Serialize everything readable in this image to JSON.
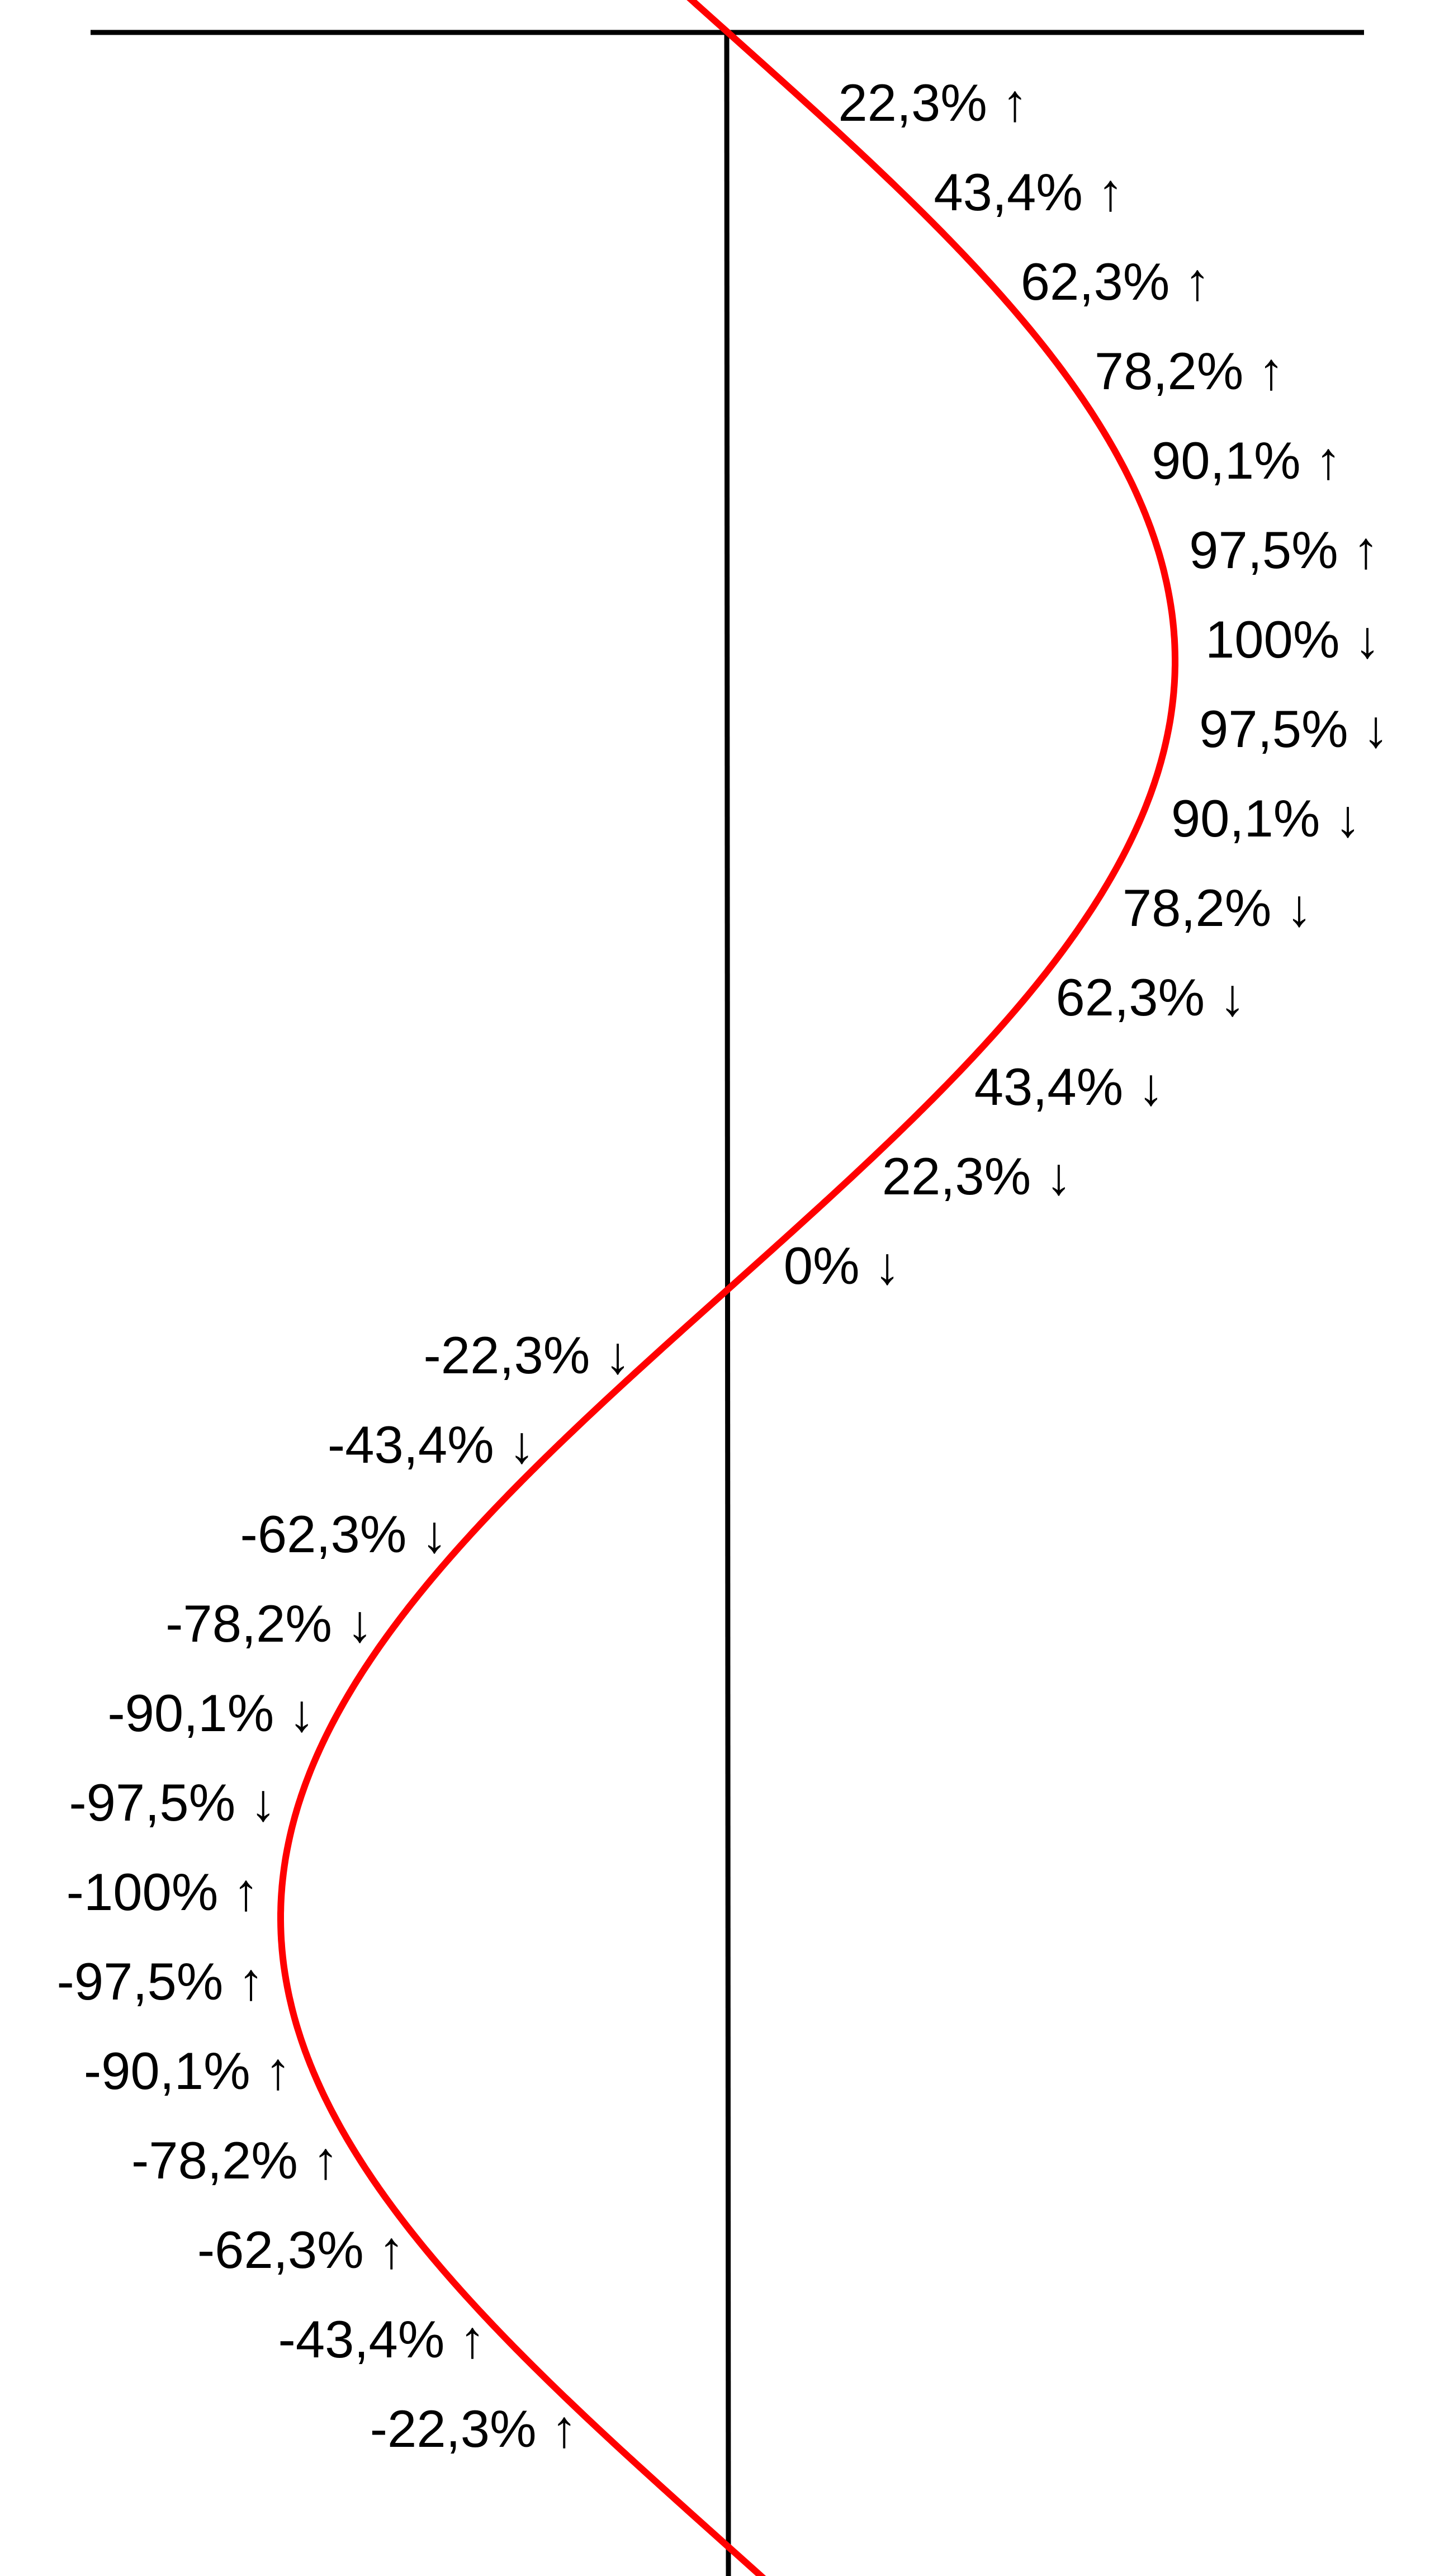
{
  "colors": {
    "background": "#ffffff",
    "axis": "#000000",
    "curve": "#ff0000",
    "text": "#000000"
  },
  "chart_data": {
    "type": "line",
    "orientation": "vertical",
    "curve": "sine",
    "points": [
      {
        "value": 22.3,
        "label": "22,3%",
        "direction": "up"
      },
      {
        "value": 43.4,
        "label": "43,4%",
        "direction": "up"
      },
      {
        "value": 62.3,
        "label": "62,3%",
        "direction": "up"
      },
      {
        "value": 78.2,
        "label": "78,2%",
        "direction": "up"
      },
      {
        "value": 90.1,
        "label": "90,1%",
        "direction": "up"
      },
      {
        "value": 97.5,
        "label": "97,5%",
        "direction": "up"
      },
      {
        "value": 100,
        "label": "100%",
        "direction": "down"
      },
      {
        "value": 97.5,
        "label": "97,5%",
        "direction": "down"
      },
      {
        "value": 90.1,
        "label": "90,1%",
        "direction": "down"
      },
      {
        "value": 78.2,
        "label": "78,2%",
        "direction": "down"
      },
      {
        "value": 62.3,
        "label": "62,3%",
        "direction": "down"
      },
      {
        "value": 43.4,
        "label": "43,4%",
        "direction": "down"
      },
      {
        "value": 22.3,
        "label": "22,3%",
        "direction": "down"
      },
      {
        "value": 0,
        "label": "0%",
        "direction": "down"
      },
      {
        "value": -22.3,
        "label": "-22,3%",
        "direction": "down"
      },
      {
        "value": -43.4,
        "label": "-43,4%",
        "direction": "down"
      },
      {
        "value": -62.3,
        "label": "-62,3%",
        "direction": "down"
      },
      {
        "value": -78.2,
        "label": "-78,2%",
        "direction": "down"
      },
      {
        "value": -90.1,
        "label": "-90,1%",
        "direction": "down"
      },
      {
        "value": -97.5,
        "label": "-97,5%",
        "direction": "down"
      },
      {
        "value": -100,
        "label": "-100%",
        "direction": "up"
      },
      {
        "value": -97.5,
        "label": "-97,5%",
        "direction": "up"
      },
      {
        "value": -90.1,
        "label": "-90,1%",
        "direction": "up"
      },
      {
        "value": -78.2,
        "label": "-78,2%",
        "direction": "up"
      },
      {
        "value": -62.3,
        "label": "-62,3%",
        "direction": "up"
      },
      {
        "value": -43.4,
        "label": "-43,4%",
        "direction": "up"
      },
      {
        "value": -22.3,
        "label": "-22,3%",
        "direction": "up"
      }
    ],
    "arrows": {
      "up": "↑",
      "down": "↓"
    }
  }
}
